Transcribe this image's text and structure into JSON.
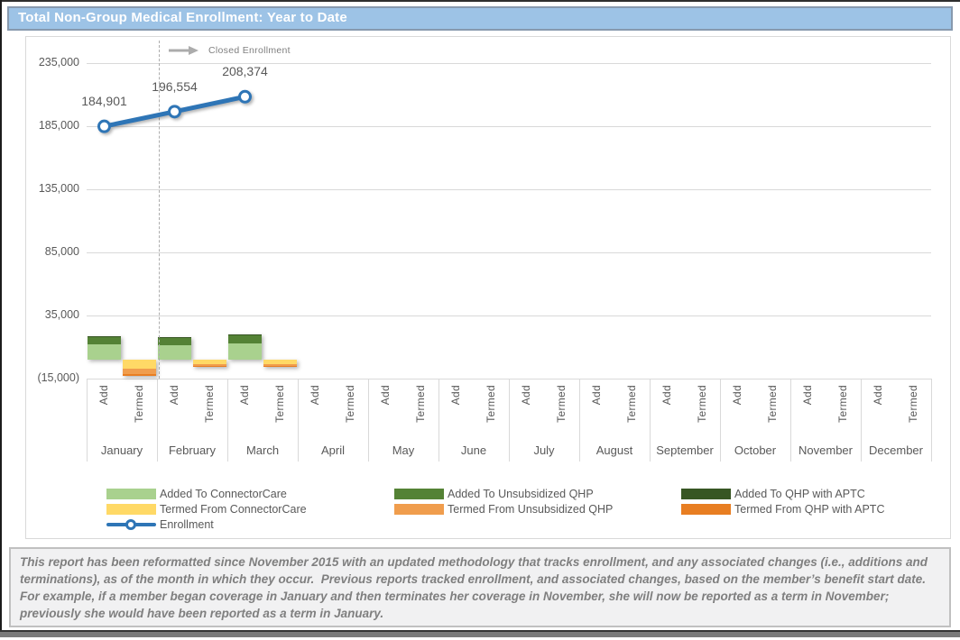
{
  "page": {
    "title": "Total Non-Group Medical Enrollment: Year to Date",
    "footnote": "This report has been reformatted since November 2015 with an updated methodology that tracks enrollment, and any associated changes (i.e., additions and terminations), as of the month in which they occur.  Previous reports tracked enrollment, and associated changes, based on the member’s benefit start date.  For example, if a member began coverage in January and then terminates her coverage in November, she will now be reported as a term in November; previously she would have been reported as a term in January."
  },
  "chart_data": {
    "type": "bar",
    "subtype": "stacked bars with enrollment line overlay",
    "annotation": "Closed Enrollment",
    "months": [
      "January",
      "February",
      "March",
      "April",
      "May",
      "June",
      "July",
      "August",
      "September",
      "October",
      "November",
      "December"
    ],
    "sub_categories": [
      "Add",
      "Termed"
    ],
    "y_ticks": [
      "235,000",
      "185,000",
      "135,000",
      "85,000",
      "35,000",
      "(15,000)"
    ],
    "y_tick_values": [
      235000,
      185000,
      135000,
      85000,
      35000,
      -15000
    ],
    "ylim": [
      -15000,
      235000
    ],
    "grid": "horizontal gridlines on",
    "legend_position": "bottom",
    "bar_series": [
      {
        "name": "Added To ConnectorCare",
        "color": "#A9D18E",
        "column": "Add",
        "values": [
          11800,
          11300,
          13000,
          0,
          0,
          0,
          0,
          0,
          0,
          0,
          0,
          0
        ]
      },
      {
        "name": "Added To Unsubsidized QHP",
        "color": "#548235",
        "column": "Add",
        "values": [
          5900,
          5700,
          6100,
          0,
          0,
          0,
          0,
          0,
          0,
          0,
          0,
          0
        ]
      },
      {
        "name": "Added To QHP with APTC",
        "color": "#375623",
        "column": "Add",
        "values": [
          800,
          800,
          900,
          0,
          0,
          0,
          0,
          0,
          0,
          0,
          0,
          0
        ]
      },
      {
        "name": "Termed From ConnectorCare",
        "color": "#FFD966",
        "column": "Termed",
        "values": [
          -7100,
          -3800,
          -3800,
          0,
          0,
          0,
          0,
          0,
          0,
          0,
          0,
          0
        ]
      },
      {
        "name": "Termed From Unsubsidized QHP",
        "color": "#F09D4D",
        "column": "Termed",
        "values": [
          -4400,
          -1400,
          -1400,
          0,
          0,
          0,
          0,
          0,
          0,
          0,
          0,
          0
        ]
      },
      {
        "name": "Termed From QHP with APTC",
        "color": "#E87E22",
        "column": "Termed",
        "values": [
          -1500,
          -500,
          -500,
          0,
          0,
          0,
          0,
          0,
          0,
          0,
          0,
          0
        ]
      }
    ],
    "line_series": {
      "name": "Enrollment",
      "color": "#2E75B6",
      "values": [
        184901,
        196554,
        208374,
        null,
        null,
        null,
        null,
        null,
        null,
        null,
        null,
        null
      ],
      "labels": [
        "184,901",
        "196,554",
        "208,374"
      ]
    }
  },
  "legend": {
    "columns": [
      [
        {
          "label": "Added To ConnectorCare",
          "color": "#A9D18E",
          "type": "box"
        },
        {
          "label": "Termed From ConnectorCare",
          "color": "#FFD966",
          "type": "box"
        },
        {
          "label": "Enrollment",
          "color": "#2E75B6",
          "type": "line"
        }
      ],
      [
        {
          "label": "Added To Unsubsidized QHP",
          "color": "#548235",
          "type": "box"
        },
        {
          "label": "Termed From Unsubsidized QHP",
          "color": "#F09D4D",
          "type": "box"
        }
      ],
      [
        {
          "label": "Added To QHP with APTC",
          "color": "#375623",
          "type": "box"
        },
        {
          "label": "Termed From QHP with APTC",
          "color": "#E87E22",
          "type": "box"
        }
      ]
    ]
  }
}
